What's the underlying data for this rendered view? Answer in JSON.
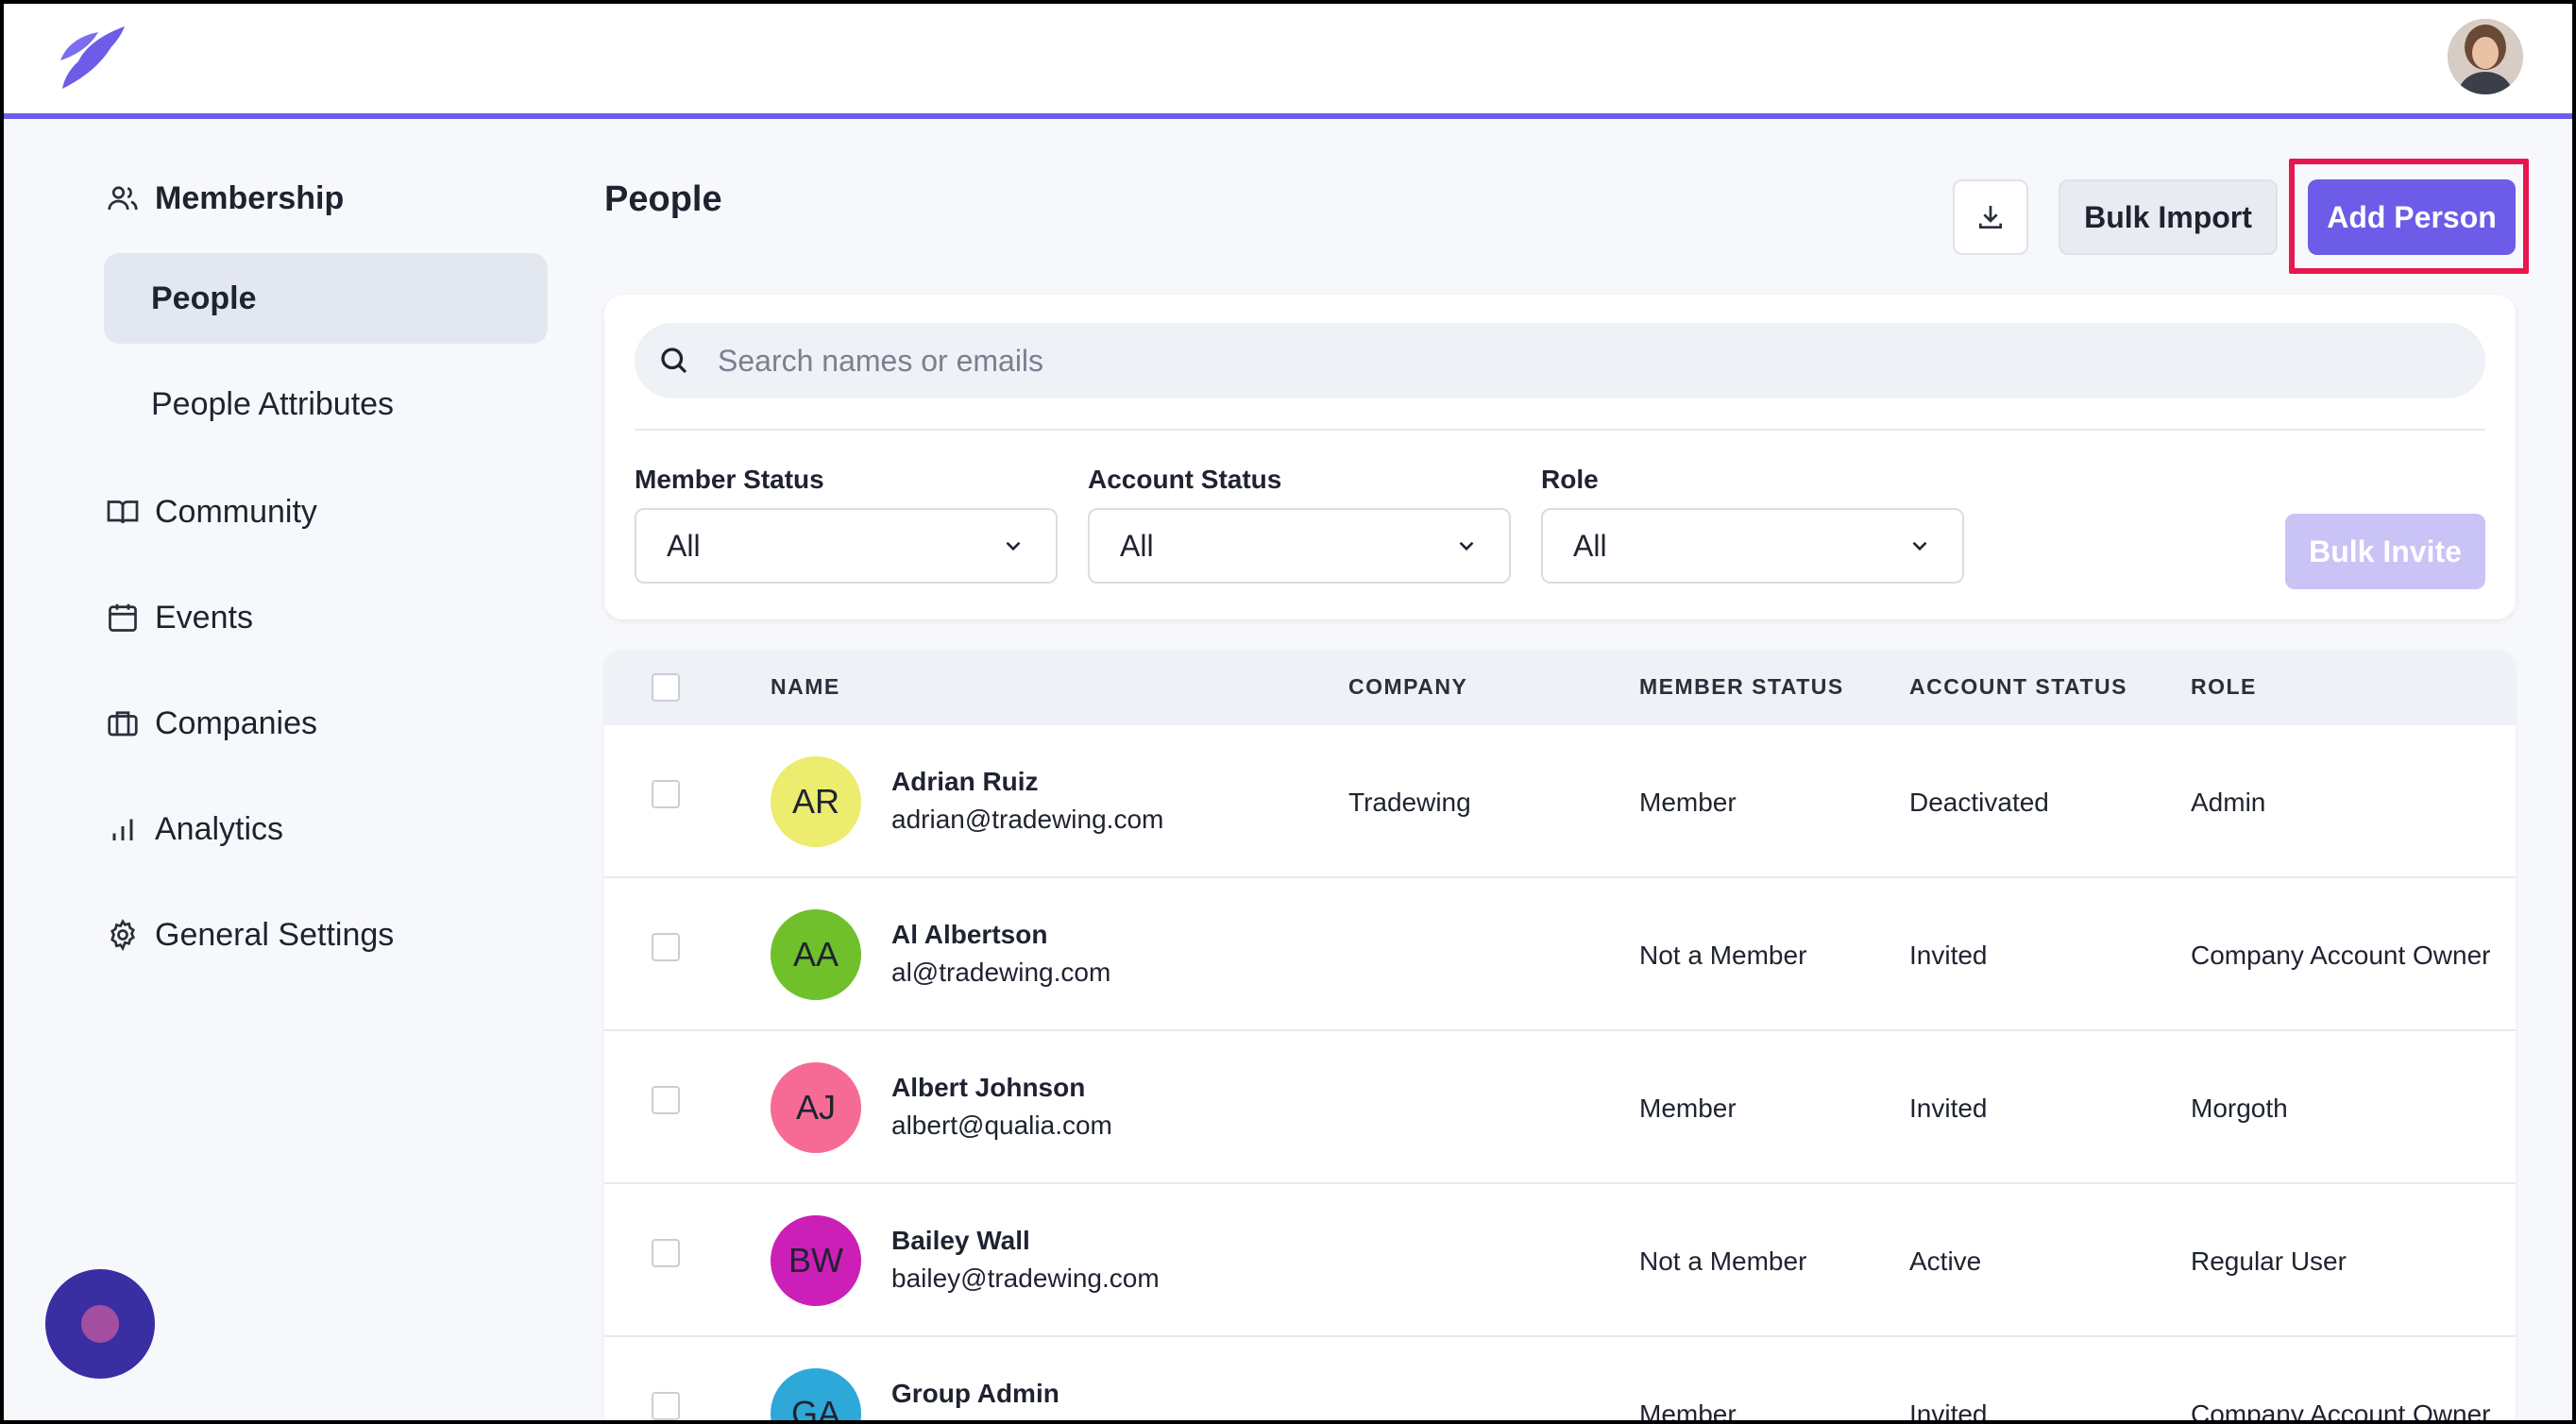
{
  "colors": {
    "accent": "#6c5ce7",
    "highlight": "#e8174f"
  },
  "sidebar": {
    "membership": "Membership",
    "people": "People",
    "people_attributes": "People Attributes",
    "community": "Community",
    "events": "Events",
    "companies": "Companies",
    "analytics": "Analytics",
    "general_settings": "General Settings"
  },
  "header": {
    "title": "People",
    "bulk_import": "Bulk Import",
    "add_person": "Add Person"
  },
  "search": {
    "placeholder": "Search names or emails"
  },
  "filters": {
    "member_status": {
      "label": "Member Status",
      "value": "All"
    },
    "account_status": {
      "label": "Account Status",
      "value": "All"
    },
    "role": {
      "label": "Role",
      "value": "All"
    },
    "bulk_invite": "Bulk Invite"
  },
  "table": {
    "columns": [
      "NAME",
      "COMPANY",
      "MEMBER STATUS",
      "ACCOUNT STATUS",
      "ROLE"
    ],
    "rows": [
      {
        "initials": "AR",
        "color": "#ecec6e",
        "name": "Adrian Ruiz",
        "email": "adrian@tradewing.com",
        "company": "Tradewing",
        "member_status": "Member",
        "account_status": "Deactivated",
        "role": "Admin"
      },
      {
        "initials": "AA",
        "color": "#6fc02a",
        "name": "Al Albertson",
        "email": "al@tradewing.com",
        "company": "",
        "member_status": "Not a Member",
        "account_status": "Invited",
        "role": "Company Account Owner"
      },
      {
        "initials": "AJ",
        "color": "#f56b95",
        "name": "Albert Johnson",
        "email": "albert@qualia.com",
        "company": "",
        "member_status": "Member",
        "account_status": "Invited",
        "role": "Morgoth"
      },
      {
        "initials": "BW",
        "color": "#cc1fb7",
        "name": "Bailey Wall",
        "email": "bailey@tradewing.com",
        "company": "",
        "member_status": "Not a Member",
        "account_status": "Active",
        "role": "Regular User"
      },
      {
        "initials": "GA",
        "color": "#2ea8d8",
        "name": "Group Admin",
        "email": "",
        "company": "",
        "member_status": "Member",
        "account_status": "Invited",
        "role": "Company Account Owner"
      }
    ]
  }
}
